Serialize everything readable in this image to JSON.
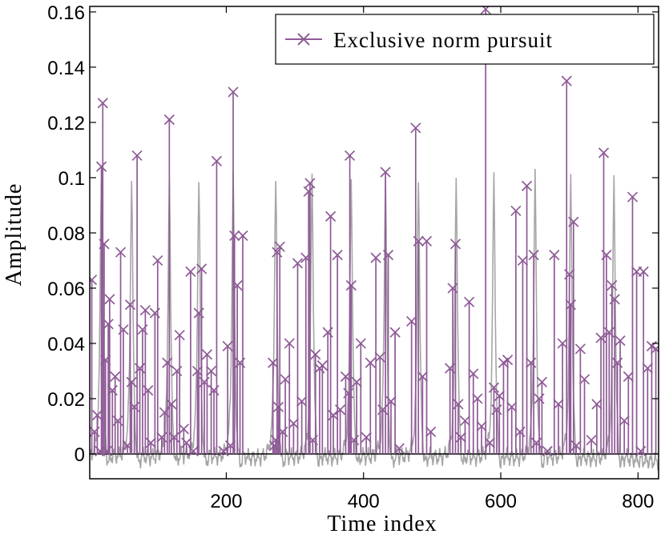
{
  "chart_data": {
    "type": "stem",
    "xlabel": "Time index",
    "ylabel": "Amplitude",
    "xlim": [
      1,
      830
    ],
    "ylim": [
      -0.009,
      0.162
    ],
    "xticks": [
      200,
      400,
      600,
      800
    ],
    "yticks": [
      0,
      0.02,
      0.04,
      0.06,
      0.08,
      0.1,
      0.12,
      0.14,
      0.16
    ],
    "ytick_labels": [
      "0",
      "0.02",
      "0.04",
      "0.06",
      "0.08",
      "0.1",
      "0.12",
      "0.14",
      "0.16"
    ],
    "legend": {
      "position": "top-right",
      "entries": [
        "Exclusive norm pursuit"
      ]
    },
    "colors": {
      "stem": "#8e5a96",
      "background_signal": "#a6a6a6",
      "baseline": "#000000"
    },
    "background_signal": {
      "description_peaks_x": [
        18,
        62,
        117,
        160,
        210,
        272,
        325,
        382,
        432,
        480,
        535,
        590,
        650,
        702,
        765
      ],
      "peak_amplitude": 0.103,
      "trough_amplitude": -0.007
    },
    "series": [
      {
        "name": "Exclusive norm pursuit",
        "x": [
          4,
          8,
          12,
          16,
          18,
          20,
          22,
          24,
          26,
          28,
          30,
          34,
          38,
          42,
          46,
          50,
          56,
          60,
          62,
          66,
          70,
          74,
          78,
          82,
          86,
          90,
          96,
          100,
          106,
          110,
          114,
          117,
          120,
          124,
          128,
          132,
          138,
          142,
          148,
          152,
          158,
          160,
          164,
          168,
          172,
          178,
          182,
          186,
          196,
          202,
          206,
          210,
          212,
          216,
          220,
          224,
          268,
          270,
          272,
          274,
          276,
          278,
          282,
          286,
          292,
          298,
          304,
          310,
          316,
          320,
          322,
          326,
          330,
          336,
          340,
          348,
          352,
          356,
          362,
          366,
          374,
          378,
          380,
          382,
          386,
          390,
          396,
          404,
          410,
          418,
          424,
          428,
          432,
          436,
          440,
          446,
          452,
          470,
          476,
          480,
          486,
          492,
          498,
          526,
          530,
          534,
          538,
          542,
          548,
          554,
          560,
          566,
          572,
          578,
          584,
          590,
          594,
          598,
          604,
          610,
          616,
          622,
          628,
          632,
          638,
          644,
          648,
          652,
          656,
          660,
          668,
          678,
          684,
          690,
          696,
          700,
          702,
          706,
          710,
          716,
          722,
          732,
          740,
          746,
          750,
          754,
          758,
          762,
          766,
          770,
          774,
          780,
          786,
          792,
          798,
          804,
          808,
          814,
          820,
          826
        ],
        "y": [
          0.063,
          0.008,
          0.014,
          0.001,
          0.104,
          0.127,
          0.076,
          0.034,
          0.001,
          0.047,
          0.056,
          0.023,
          0.028,
          0.012,
          0.073,
          0.045,
          0.003,
          0.054,
          0.026,
          0.017,
          0.108,
          0.031,
          0.045,
          0.052,
          0.023,
          0.004,
          0.051,
          0.07,
          0.006,
          0.015,
          0.033,
          0.121,
          0.018,
          0.006,
          0.03,
          0.043,
          0.009,
          0.004,
          0.066,
          0.001,
          0.03,
          0.051,
          0.067,
          0.026,
          0.036,
          0.03,
          0.023,
          0.106,
          0.001,
          0.039,
          0.003,
          0.131,
          0.079,
          0.061,
          0.033,
          0.079,
          0.033,
          0.003,
          0.005,
          0.073,
          0.017,
          0.075,
          0.008,
          0.027,
          0.04,
          0.011,
          0.069,
          0.019,
          0.071,
          0.095,
          0.098,
          0.005,
          0.036,
          0.031,
          0.032,
          0.044,
          0.086,
          0.014,
          0.072,
          0.016,
          0.028,
          0.022,
          0.108,
          0.061,
          0.005,
          0.026,
          0.04,
          0.006,
          0.033,
          0.071,
          0.035,
          0.016,
          0.102,
          0.072,
          0.019,
          0.044,
          0.002,
          0.048,
          0.118,
          0.077,
          0.028,
          0.077,
          0.008,
          0.031,
          0.06,
          0.076,
          0.018,
          0.006,
          0.012,
          0.055,
          0.029,
          0.02,
          0.01,
          0.161,
          0.004,
          0.024,
          0.016,
          0.021,
          0.033,
          0.034,
          0.017,
          0.088,
          0.008,
          0.07,
          0.097,
          0.033,
          0.072,
          0.004,
          0.02,
          0.026,
          0.001,
          0.072,
          0.018,
          0.04,
          0.135,
          0.065,
          0.054,
          0.084,
          0.003,
          0.038,
          0.027,
          0.005,
          0.018,
          0.042,
          0.109,
          0.072,
          0.044,
          0.061,
          0.056,
          0.033,
          0.041,
          0.012,
          0.028,
          0.093,
          0.066,
          0.001,
          0.066,
          0.031,
          0.039,
          0.038
        ]
      }
    ]
  }
}
